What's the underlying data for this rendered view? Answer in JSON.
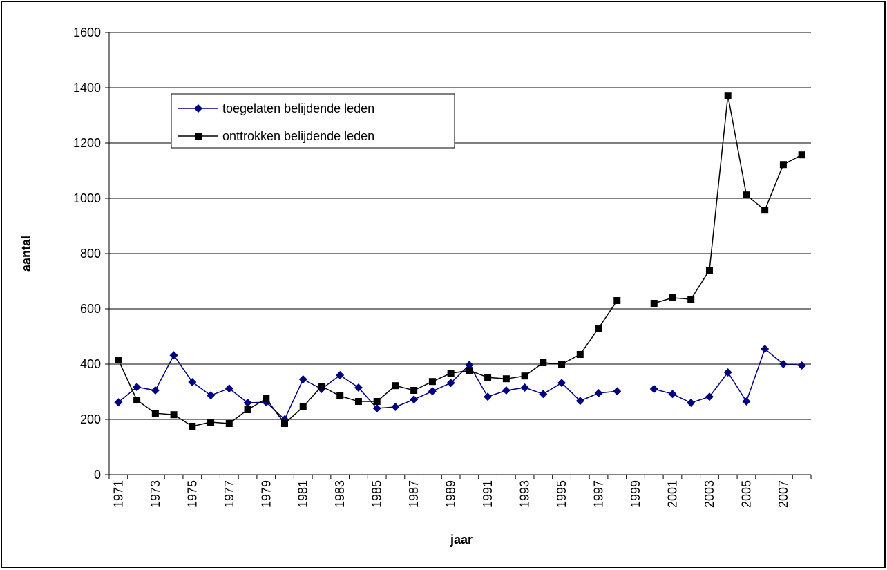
{
  "chart_data": {
    "type": "line",
    "x_label": "jaar",
    "y_label": "aantal",
    "categories": [
      "1971",
      null,
      "1973",
      null,
      "1975",
      null,
      "1977",
      null,
      "1979",
      null,
      "1981",
      null,
      "1983",
      null,
      "1985",
      null,
      "1987",
      null,
      "1989",
      null,
      "1991",
      null,
      "1993",
      null,
      "1995",
      null,
      "1997",
      null,
      "1999",
      null,
      "2001",
      null,
      "2003",
      null,
      "2005",
      null,
      "2007",
      null
    ],
    "series": [
      {
        "name": "toegelaten belijdende leden",
        "color": "#000080",
        "marker": "diamond",
        "values": [
          262,
          317,
          305,
          432,
          335,
          287,
          312,
          260,
          262,
          200,
          345,
          310,
          360,
          315,
          240,
          245,
          272,
          302,
          332,
          397,
          282,
          305,
          315,
          292,
          332,
          267,
          295,
          302,
          null,
          310,
          292,
          260,
          282,
          370,
          265,
          455,
          400,
          395
        ]
      },
      {
        "name": "onttrokken belijdende leden",
        "color": "#000000",
        "marker": "square",
        "values": [
          415,
          270,
          222,
          217,
          175,
          190,
          185,
          235,
          275,
          185,
          245,
          320,
          285,
          265,
          265,
          322,
          305,
          337,
          367,
          377,
          352,
          347,
          357,
          405,
          400,
          435,
          530,
          630,
          null,
          620,
          640,
          635,
          740,
          1372,
          1012,
          957,
          1122,
          1157
        ]
      }
    ],
    "ylim": [
      0,
      1600
    ],
    "yticks": [
      0,
      200,
      400,
      600,
      800,
      1000,
      1200,
      1400,
      1600
    ],
    "grid": true,
    "legend": "upper left"
  }
}
